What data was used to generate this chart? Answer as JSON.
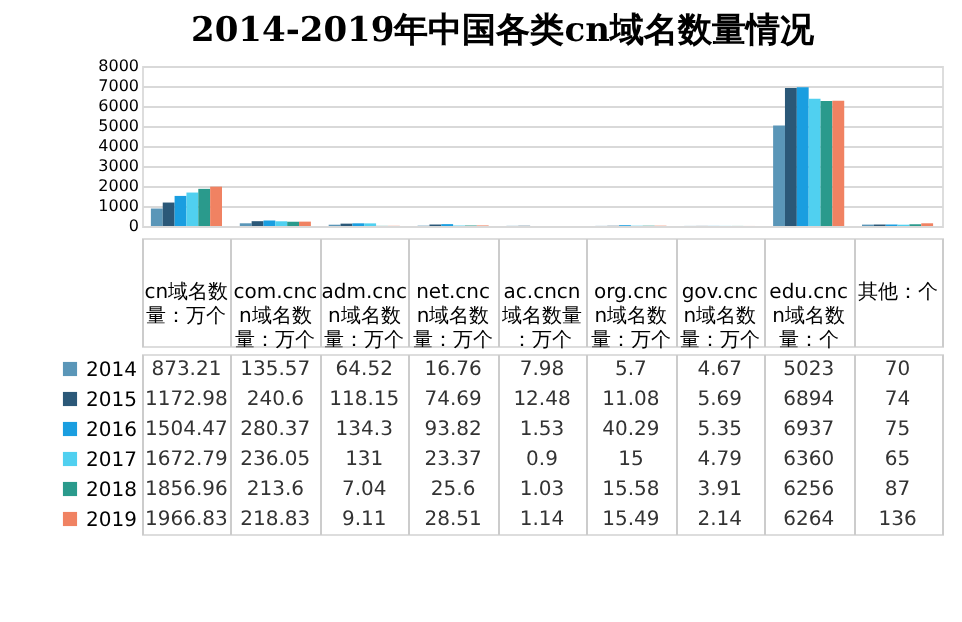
{
  "chart_data": {
    "type": "bar",
    "title": "2014-2019年中国各类cn域名数量情况",
    "categories": [
      "cn域名数量：万个",
      "com.cncn域名数量：万个",
      "adm.cncn域名数量：万个",
      "net.cncn域名数量：万个",
      "ac.cncn域名数量：万个",
      "org.cncn域名数量：万个",
      "gov.cncn域名数量：万个",
      "edu.cncn域名数量：个",
      "其他：个"
    ],
    "series": [
      {
        "name": "2014",
        "color": "#5a96b8",
        "values": [
          873.21,
          135.57,
          64.52,
          16.76,
          7.98,
          5.7,
          4.67,
          5023,
          70
        ]
      },
      {
        "name": "2015",
        "color": "#2b5878",
        "values": [
          1172.98,
          240.6,
          118.15,
          74.69,
          12.48,
          11.08,
          5.69,
          6894,
          74
        ]
      },
      {
        "name": "2016",
        "color": "#1a9ee0",
        "values": [
          1504.47,
          280.37,
          134.3,
          93.82,
          1.53,
          40.29,
          5.35,
          6937,
          75
        ]
      },
      {
        "name": "2017",
        "color": "#50d0f0",
        "values": [
          1672.79,
          236.05,
          131,
          23.37,
          0.9,
          15,
          4.79,
          6360,
          65
        ]
      },
      {
        "name": "2018",
        "color": "#2a9a8c",
        "values": [
          1856.96,
          213.6,
          7.04,
          25.6,
          1.03,
          15.58,
          3.91,
          6256,
          87
        ]
      },
      {
        "name": "2019",
        "color": "#f08262",
        "values": [
          1966.83,
          218.83,
          9.11,
          28.51,
          1.14,
          15.49,
          2.14,
          6264,
          136
        ]
      }
    ],
    "ylim": [
      0,
      8000
    ],
    "yticks": [
      0,
      1000,
      2000,
      3000,
      4000,
      5000,
      6000,
      7000,
      8000
    ],
    "grid": "y",
    "data_labels": true,
    "legend": "bottom"
  }
}
